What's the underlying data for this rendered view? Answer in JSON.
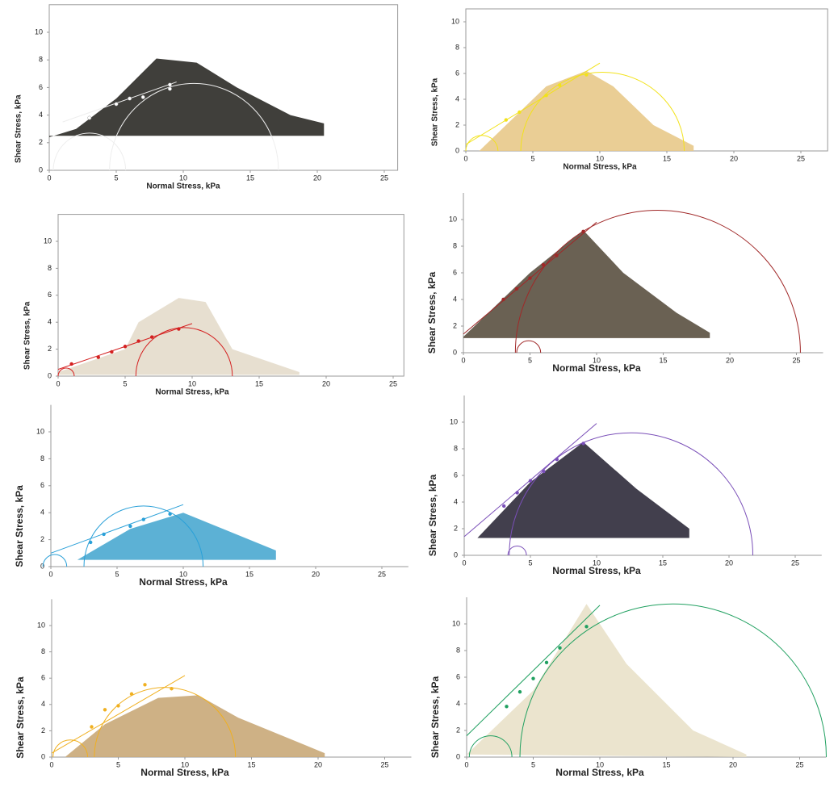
{
  "chart_data": [
    {
      "type": "scatter",
      "xlabel": "Normal Stress, kPa",
      "ylabel": "Shear Stress, kPa",
      "xlim": [
        0,
        26
      ],
      "ylim": [
        0,
        12
      ],
      "xticks": [
        0,
        5,
        10,
        15,
        20,
        25
      ],
      "yticks": [
        0,
        2,
        4,
        6,
        8,
        10
      ],
      "color": "#ffffff",
      "x": [
        3,
        5,
        6,
        7,
        9,
        9
      ],
      "values": [
        3.8,
        4.8,
        5.2,
        5.3,
        6.2,
        5.9
      ],
      "fit": {
        "x": [
          1,
          9.5
        ],
        "y": [
          3.5,
          6.4
        ]
      },
      "circles": [
        {
          "center": 3,
          "radius": 2.7
        },
        {
          "center": 10.8,
          "radius": 6.3
        }
      ]
    },
    {
      "type": "scatter",
      "xlabel": "Normal Stress, kPa",
      "ylabel": "Shear Stress, kPa",
      "xlim": [
        0,
        27
      ],
      "ylim": [
        0,
        11
      ],
      "xticks": [
        0,
        5,
        10,
        15,
        20,
        25
      ],
      "yticks": [
        0,
        2,
        4,
        6,
        8,
        10
      ],
      "color": "#f2e21a",
      "x": [
        3,
        4,
        6,
        7,
        9
      ],
      "values": [
        2.4,
        3.0,
        4.3,
        5.1,
        5.9
      ],
      "fit": {
        "x": [
          0,
          10
        ],
        "y": [
          0.5,
          6.8
        ]
      },
      "circles": [
        {
          "center": 1.2,
          "radius": 1.2
        },
        {
          "center": 10.2,
          "radius": 6.1
        }
      ]
    },
    {
      "type": "scatter",
      "xlabel": "Normal Stress, kPa",
      "ylabel": "Shear Stress, kPa",
      "xlim": [
        0,
        25.8
      ],
      "ylim": [
        0,
        12
      ],
      "xticks": [
        0,
        5,
        10,
        15,
        20,
        25
      ],
      "yticks": [
        0,
        2,
        4,
        6,
        8,
        10
      ],
      "color": "#d42020",
      "x": [
        1,
        3,
        4,
        5,
        6,
        7,
        9
      ],
      "values": [
        0.9,
        1.4,
        1.8,
        2.2,
        2.6,
        2.9,
        3.5
      ],
      "fit": {
        "x": [
          0,
          10
        ],
        "y": [
          0.5,
          3.9
        ]
      },
      "circles": [
        {
          "center": 0.6,
          "radius": 0.6
        },
        {
          "center": 9.4,
          "radius": 3.6
        }
      ]
    },
    {
      "type": "scatter",
      "xlabel": "Normal Stress, kPa",
      "ylabel": "Shear Stress, kPa",
      "xlim": [
        0,
        27
      ],
      "ylim": [
        0,
        12
      ],
      "xticks": [
        0,
        5,
        10,
        15,
        20,
        25
      ],
      "yticks": [
        0,
        2,
        4,
        6,
        8,
        10
      ],
      "color": "#a02828",
      "x": [
        3,
        4,
        5,
        6,
        7,
        9
      ],
      "values": [
        4.0,
        4.8,
        5.6,
        6.6,
        7.3,
        9.1
      ],
      "fit": {
        "x": [
          0,
          10
        ],
        "y": [
          1.4,
          9.8
        ]
      },
      "circles": [
        {
          "center": 4.9,
          "radius": 0.9
        },
        {
          "center": 14.6,
          "radius": 10.7
        }
      ]
    },
    {
      "type": "scatter",
      "xlabel": "Normal Stress, kPa",
      "ylabel": "Shear Stress, kPa",
      "xlim": [
        0,
        27
      ],
      "ylim": [
        0,
        12
      ],
      "xticks": [
        0,
        5,
        10,
        15,
        20,
        25
      ],
      "yticks": [
        0,
        2,
        4,
        6,
        8,
        10
      ],
      "color": "#2aa0d8",
      "x": [
        3,
        4,
        6,
        7,
        9
      ],
      "values": [
        1.8,
        2.4,
        3.0,
        3.5,
        3.9
      ],
      "fit": {
        "x": [
          0,
          10
        ],
        "y": [
          1.0,
          4.6
        ]
      },
      "circles": [
        {
          "center": 0.3,
          "radius": 0.9
        },
        {
          "center": 7,
          "radius": 4.5
        }
      ]
    },
    {
      "type": "scatter",
      "xlabel": "Normal Stress, kPa",
      "ylabel": "Shear Stress, kPa",
      "xlim": [
        0,
        27
      ],
      "ylim": [
        0,
        12
      ],
      "xticks": [
        0,
        5,
        10,
        15,
        20,
        25
      ],
      "yticks": [
        0,
        2,
        4,
        6,
        8,
        10
      ],
      "color": "#7a4fb8",
      "x": [
        3,
        4,
        5,
        6,
        7,
        9
      ],
      "values": [
        3.7,
        4.7,
        5.6,
        6.3,
        7.2,
        8.4
      ],
      "fit": {
        "x": [
          0,
          10
        ],
        "y": [
          1.4,
          9.9
        ]
      },
      "circles": [
        {
          "center": 4,
          "radius": 0.7
        },
        {
          "center": 12.6,
          "radius": 9.2
        }
      ]
    },
    {
      "type": "scatter",
      "xlabel": "Normal Stress, kPa",
      "ylabel": "Shear Stress, kPa",
      "xlim": [
        0,
        27
      ],
      "ylim": [
        0,
        12
      ],
      "xticks": [
        0,
        5,
        10,
        15,
        20,
        25
      ],
      "yticks": [
        0,
        2,
        4,
        6,
        8,
        10
      ],
      "color": "#f0b020",
      "x": [
        3,
        4,
        5,
        6,
        7,
        9
      ],
      "values": [
        2.3,
        3.6,
        3.9,
        4.8,
        5.5,
        5.2
      ],
      "fit": {
        "x": [
          0,
          10
        ],
        "y": [
          0.3,
          6.2
        ]
      },
      "circles": [
        {
          "center": 1.4,
          "radius": 1.3
        },
        {
          "center": 8.5,
          "radius": 5.3
        }
      ]
    },
    {
      "type": "scatter",
      "xlabel": "Normal Stress, kPa",
      "ylabel": "Shear Stress, kPa",
      "xlim": [
        0,
        27
      ],
      "ylim": [
        0,
        12
      ],
      "xticks": [
        0,
        5,
        10,
        15,
        20,
        25
      ],
      "yticks": [
        0,
        2,
        4,
        6,
        8,
        10
      ],
      "color": "#20a060",
      "x": [
        3,
        4,
        5,
        6,
        7,
        9
      ],
      "values": [
        3.8,
        4.9,
        5.9,
        7.1,
        8.2,
        9.8
      ],
      "fit": {
        "x": [
          0,
          10
        ],
        "y": [
          1.6,
          11.4
        ]
      },
      "circles": [
        {
          "center": 1.8,
          "radius": 1.6
        },
        {
          "center": 15.5,
          "radius": 11.5
        }
      ]
    }
  ]
}
